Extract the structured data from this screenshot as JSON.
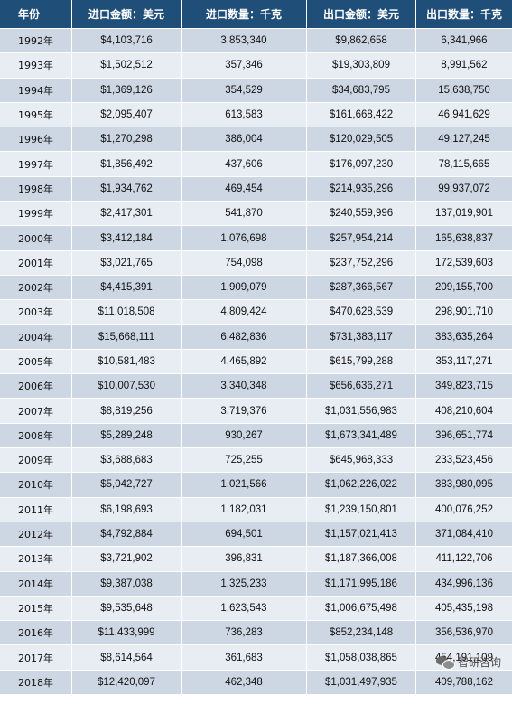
{
  "table": {
    "headers": [
      "年份",
      "进口金额：美元",
      "进口数量：千克",
      "出口金额：美元",
      "出口数量：千克"
    ],
    "rows": [
      [
        "1992年",
        "$4,103,716",
        "3,853,340",
        "$9,862,658",
        "6,341,966"
      ],
      [
        "1993年",
        "$1,502,512",
        "357,346",
        "$19,303,809",
        "8,991,562"
      ],
      [
        "1994年",
        "$1,369,126",
        "354,529",
        "$34,683,795",
        "15,638,750"
      ],
      [
        "1995年",
        "$2,095,407",
        "613,583",
        "$161,668,422",
        "46,941,629"
      ],
      [
        "1996年",
        "$1,270,298",
        "386,004",
        "$120,029,505",
        "49,127,245"
      ],
      [
        "1997年",
        "$1,856,492",
        "437,606",
        "$176,097,230",
        "78,115,665"
      ],
      [
        "1998年",
        "$1,934,762",
        "469,454",
        "$214,935,296",
        "99,937,072"
      ],
      [
        "1999年",
        "$2,417,301",
        "541,870",
        "$240,559,996",
        "137,019,901"
      ],
      [
        "2000年",
        "$3,412,184",
        "1,076,698",
        "$257,954,214",
        "165,638,837"
      ],
      [
        "2001年",
        "$3,021,765",
        "754,098",
        "$237,752,296",
        "172,539,603"
      ],
      [
        "2002年",
        "$4,415,391",
        "1,909,079",
        "$287,366,567",
        "209,155,700"
      ],
      [
        "2003年",
        "$11,018,508",
        "4,809,424",
        "$470,628,539",
        "298,901,710"
      ],
      [
        "2004年",
        "$15,668,111",
        "6,482,836",
        "$731,383,117",
        "383,635,264"
      ],
      [
        "2005年",
        "$10,581,483",
        "4,465,892",
        "$615,799,288",
        "353,117,271"
      ],
      [
        "2006年",
        "$10,007,530",
        "3,340,348",
        "$656,636,271",
        "349,823,715"
      ],
      [
        "2007年",
        "$8,819,256",
        "3,719,376",
        "$1,031,556,983",
        "408,210,604"
      ],
      [
        "2008年",
        "$5,289,248",
        "930,267",
        "$1,673,341,489",
        "396,651,774"
      ],
      [
        "2009年",
        "$3,688,683",
        "725,255",
        "$645,968,333",
        "233,523,456"
      ],
      [
        "2010年",
        "$5,042,727",
        "1,021,566",
        "$1,062,226,022",
        "383,980,095"
      ],
      [
        "2011年",
        "$6,198,693",
        "1,182,031",
        "$1,239,150,801",
        "400,076,252"
      ],
      [
        "2012年",
        "$4,792,884",
        "694,501",
        "$1,157,021,413",
        "371,084,410"
      ],
      [
        "2013年",
        "$3,721,902",
        "396,831",
        "$1,187,366,008",
        "411,122,706"
      ],
      [
        "2014年",
        "$9,387,038",
        "1,325,233",
        "$1,171,995,186",
        "434,996,136"
      ],
      [
        "2015年",
        "$9,535,648",
        "1,623,543",
        "$1,006,675,498",
        "405,435,198"
      ],
      [
        "2016年",
        "$11,433,999",
        "736,283",
        "$852,234,148",
        "356,536,970"
      ],
      [
        "2017年",
        "$8,614,564",
        "361,683",
        "$1,058,038,865",
        "454,191,109"
      ],
      [
        "2018年",
        "$12,420,097",
        "462,348",
        "$1,031,497,935",
        "409,788,162"
      ]
    ]
  },
  "watermark": {
    "icon": "wechat-icon",
    "text": "智研咨询"
  }
}
